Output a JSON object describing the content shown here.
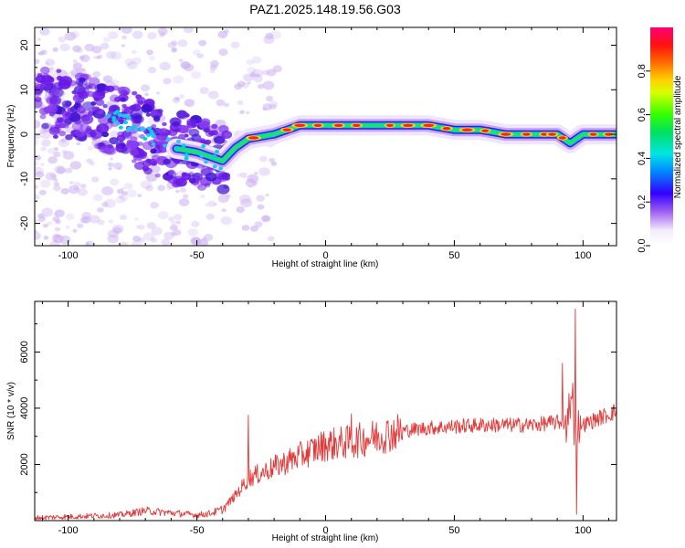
{
  "title": "PAZ1.2025.148.19.56.G03",
  "colors": {
    "snr_line": "#e23a3a",
    "axis": "#000000",
    "spectro_low": "#d8c4f4",
    "spectro_mid": "#5a12e0"
  },
  "chart_data": [
    {
      "type": "heatmap",
      "name": "spectrogram",
      "title": "PAZ1.2025.148.19.56.G03",
      "xlabel": "Height of straight line (km)",
      "ylabel": "Frequency (Hz)",
      "xlim": [
        -113,
        113
      ],
      "ylim": [
        -25,
        24
      ],
      "xticks": [
        -100,
        -50,
        0,
        50,
        100
      ],
      "yticks": [
        -20,
        -10,
        0,
        10,
        20
      ],
      "ridge": {
        "x": [
          -113,
          -100,
          -90,
          -80,
          -70,
          -60,
          -50,
          -45,
          -40,
          -35,
          -30,
          -20,
          -10,
          0,
          10,
          20,
          30,
          40,
          50,
          60,
          70,
          80,
          90,
          95,
          100,
          113
        ],
        "y": [
          8,
          6,
          5,
          3,
          0,
          -3,
          -4,
          -5,
          -6,
          -3,
          -1,
          0,
          2,
          2,
          2,
          2,
          2,
          2,
          1,
          1,
          0,
          0,
          0,
          -2,
          0,
          0
        ]
      },
      "colorbar": {
        "label": "Normalized spectral amplitude",
        "range": [
          0,
          1
        ],
        "ticks": [
          0.0,
          0.2,
          0.4,
          0.6,
          0.8
        ],
        "tick_labels": [
          "0.0",
          "0.2",
          "0.4",
          "0.6",
          "0.8"
        ]
      }
    },
    {
      "type": "line",
      "name": "snr",
      "xlabel": "Height of straight line (km)",
      "ylabel": "SNR (10 * v/v)",
      "xlim": [
        -113,
        113
      ],
      "ylim": [
        0,
        7800
      ],
      "xticks": [
        -100,
        -50,
        0,
        50,
        100
      ],
      "yticks": [
        2000,
        4000,
        6000
      ],
      "trend": {
        "x": [
          -113,
          -80,
          -70,
          -50,
          -45,
          -40,
          -35,
          -30,
          -20,
          -10,
          0,
          10,
          20,
          30,
          40,
          50,
          60,
          70,
          80,
          90,
          94,
          96,
          97,
          98,
          100,
          105,
          113
        ],
        "y": [
          100,
          200,
          350,
          200,
          250,
          400,
          900,
          1500,
          1900,
          2300,
          2700,
          2800,
          3000,
          3200,
          3300,
          3350,
          3400,
          3400,
          3400,
          3500,
          3500,
          4500,
          2500,
          3600,
          3400,
          3600,
          3900
        ]
      },
      "spikes": [
        {
          "x": -30,
          "y": 3750
        },
        {
          "x": 10,
          "y": 3800
        },
        {
          "x": 92,
          "y": 5600
        },
        {
          "x": 97,
          "y": 7800
        },
        {
          "x": 97.5,
          "y": 200
        }
      ]
    }
  ]
}
